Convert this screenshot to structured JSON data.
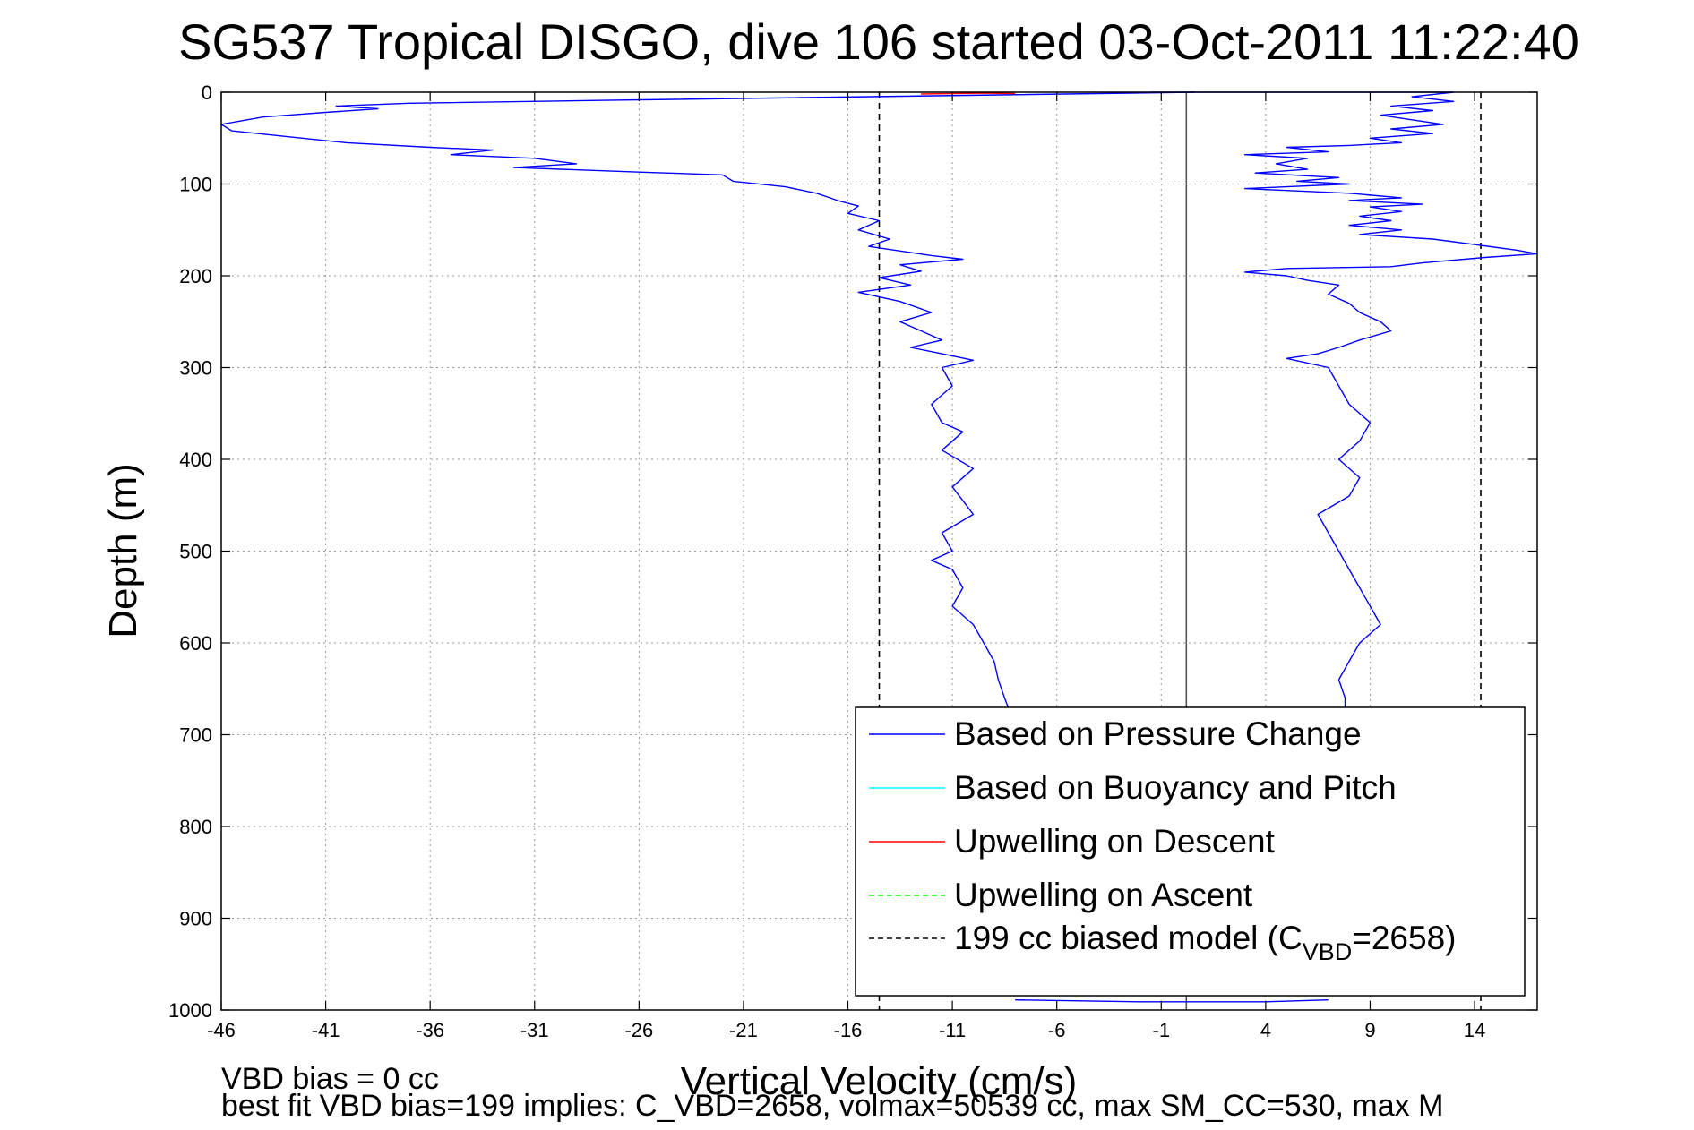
{
  "chart_data": {
    "type": "line",
    "title": "SG537 Tropical DISGO, dive 106 started 03-Oct-2011 11:22:40",
    "xlabel": "Vertical Velocity (cm/s)",
    "ylabel": "Depth (m)",
    "xlim": [
      -46,
      17
    ],
    "ylim": [
      0,
      1000
    ],
    "y_reversed": true,
    "grid": true,
    "x_ticks": [
      -46,
      -41,
      -36,
      -31,
      -26,
      -21,
      -16,
      -11,
      -6,
      -1,
      4,
      9,
      14
    ],
    "y_ticks": [
      0,
      100,
      200,
      300,
      400,
      500,
      600,
      700,
      800,
      900,
      1000
    ],
    "legend_position": "bottom-right",
    "legend": [
      {
        "label": "Based on Pressure Change",
        "color": "#0000ff",
        "style": "solid"
      },
      {
        "label": "Based on Buoyancy and Pitch",
        "color": "#00ffff",
        "style": "solid"
      },
      {
        "label": "Upwelling on Descent",
        "color": "#ff0000",
        "style": "solid"
      },
      {
        "label": "Upwelling on Ascent",
        "color": "#00ff00",
        "style": "dashed"
      },
      {
        "label": "199 cc biased model (C",
        "sub": "VBD",
        "suffix": "=2658)",
        "color": "#000000",
        "style": "dashed"
      }
    ],
    "series": [
      {
        "name": "Based on Pressure Change",
        "part": "descent",
        "color": "#0000ff",
        "points": [
          [
            0.6,
            0
          ],
          [
            -28,
            9
          ],
          [
            -37,
            12
          ],
          [
            -40.5,
            15
          ],
          [
            -38.5,
            18
          ],
          [
            -41,
            22
          ],
          [
            -44,
            27
          ],
          [
            -46,
            35
          ],
          [
            -45.5,
            42
          ],
          [
            -43,
            48
          ],
          [
            -40,
            55
          ],
          [
            -36,
            60
          ],
          [
            -33,
            63
          ],
          [
            -35,
            68
          ],
          [
            -31,
            72
          ],
          [
            -29,
            78
          ],
          [
            -32,
            82
          ],
          [
            -26,
            87
          ],
          [
            -22,
            90
          ],
          [
            -21.5,
            97
          ],
          [
            -19,
            103
          ],
          [
            -17.5,
            110
          ],
          [
            -16.5,
            118
          ],
          [
            -15.5,
            124
          ],
          [
            -16,
            132
          ],
          [
            -14.5,
            140
          ],
          [
            -15.5,
            150
          ],
          [
            -14,
            160
          ],
          [
            -15,
            168
          ],
          [
            -12,
            178
          ],
          [
            -10.5,
            182
          ],
          [
            -13.5,
            188
          ],
          [
            -12.5,
            195
          ],
          [
            -14.5,
            202
          ],
          [
            -13,
            210
          ],
          [
            -15.5,
            218
          ],
          [
            -13.5,
            228
          ],
          [
            -12,
            240
          ],
          [
            -13.5,
            250
          ],
          [
            -12.5,
            260
          ],
          [
            -11.5,
            270
          ],
          [
            -13,
            278
          ],
          [
            -11.5,
            285
          ],
          [
            -10,
            292
          ],
          [
            -11.5,
            300
          ],
          [
            -11,
            320
          ],
          [
            -12,
            340
          ],
          [
            -11.5,
            360
          ],
          [
            -10.5,
            370
          ],
          [
            -11.5,
            390
          ],
          [
            -10,
            410
          ],
          [
            -11,
            430
          ],
          [
            -10.5,
            445
          ],
          [
            -10,
            460
          ],
          [
            -11.5,
            480
          ],
          [
            -11,
            500
          ],
          [
            -12,
            510
          ],
          [
            -11,
            520
          ],
          [
            -10.5,
            540
          ],
          [
            -11,
            560
          ],
          [
            -10,
            580
          ],
          [
            -9.5,
            600
          ],
          [
            -9,
            620
          ],
          [
            -8.8,
            640
          ],
          [
            -8.5,
            660
          ],
          [
            -8.2,
            678
          ]
        ]
      },
      {
        "name": "Based on Pressure Change",
        "part": "ascent",
        "color": "#0000ff",
        "points": [
          [
            -1.5,
            0
          ],
          [
            13,
            0
          ],
          [
            11,
            5
          ],
          [
            13,
            10
          ],
          [
            10,
            15
          ],
          [
            12,
            20
          ],
          [
            9.5,
            25
          ],
          [
            11,
            30
          ],
          [
            12.5,
            35
          ],
          [
            10,
            40
          ],
          [
            12,
            45
          ],
          [
            9,
            50
          ],
          [
            10.5,
            55
          ],
          [
            8,
            58
          ],
          [
            5,
            60
          ],
          [
            7,
            65
          ],
          [
            3,
            68
          ],
          [
            6,
            72
          ],
          [
            4.5,
            78
          ],
          [
            6,
            84
          ],
          [
            3.5,
            88
          ],
          [
            7.5,
            93
          ],
          [
            5.5,
            97
          ],
          [
            8,
            100
          ],
          [
            5,
            103
          ],
          [
            3,
            105
          ],
          [
            8,
            110
          ],
          [
            10.5,
            115
          ],
          [
            8,
            118
          ],
          [
            11.5,
            122
          ],
          [
            9,
            125
          ],
          [
            10.5,
            130
          ],
          [
            8.5,
            135
          ],
          [
            10,
            140
          ],
          [
            8,
            145
          ],
          [
            10.5,
            150
          ],
          [
            8.5,
            155
          ],
          [
            12,
            160
          ],
          [
            14,
            166
          ],
          [
            16,
            172
          ],
          [
            17,
            176
          ],
          [
            14.5,
            180
          ],
          [
            11.5,
            186
          ],
          [
            10,
            190
          ],
          [
            5,
            192
          ],
          [
            3,
            196
          ],
          [
            5,
            200
          ],
          [
            6,
            205
          ],
          [
            7.5,
            210
          ],
          [
            7,
            220
          ],
          [
            8,
            230
          ],
          [
            8.5,
            240
          ],
          [
            9.5,
            250
          ],
          [
            10,
            260
          ],
          [
            8.5,
            270
          ],
          [
            7.5,
            278
          ],
          [
            6.5,
            285
          ],
          [
            5,
            290
          ],
          [
            7,
            300
          ],
          [
            7.5,
            320
          ],
          [
            8,
            340
          ],
          [
            9,
            360
          ],
          [
            8.5,
            380
          ],
          [
            7.5,
            400
          ],
          [
            8.5,
            420
          ],
          [
            8,
            440
          ],
          [
            6.5,
            460
          ],
          [
            7,
            480
          ],
          [
            7.5,
            500
          ],
          [
            8,
            520
          ],
          [
            8.5,
            540
          ],
          [
            9,
            560
          ],
          [
            9.5,
            580
          ],
          [
            8.5,
            600
          ],
          [
            8,
            620
          ],
          [
            7.5,
            640
          ],
          [
            7.8,
            660
          ],
          [
            7.8,
            678
          ]
        ]
      },
      {
        "name": "Upwelling on Descent",
        "color": "#ff0000",
        "points": [
          [
            -12.5,
            2
          ],
          [
            -9.5,
            1
          ],
          [
            -8,
            1.5
          ]
        ]
      },
      {
        "name": "199 cc biased model",
        "color": "#000000",
        "style": "dashed",
        "points": [
          [
            -14.5,
            0
          ],
          [
            -14.5,
            1000
          ]
        ]
      },
      {
        "name": "199 cc biased model",
        "color": "#000000",
        "style": "dashed",
        "points": [
          [
            14.3,
            0
          ],
          [
            14.3,
            1000
          ]
        ]
      },
      {
        "name": "zero-reference",
        "color": "#555555",
        "style": "solid",
        "points": [
          [
            0.2,
            0
          ],
          [
            0.2,
            1000
          ]
        ]
      },
      {
        "name": "Based on Pressure Change",
        "part": "bottom",
        "color": "#0000ff",
        "points": [
          [
            -8,
            989
          ],
          [
            -2,
            991
          ],
          [
            4,
            991
          ],
          [
            7,
            989
          ]
        ]
      }
    ],
    "annotations": [
      "VBD bias = 0 cc",
      "best fit VBD bias=199 implies: C_VBD=2658, volmax=50539 cc, max SM_CC=530, max M"
    ]
  }
}
